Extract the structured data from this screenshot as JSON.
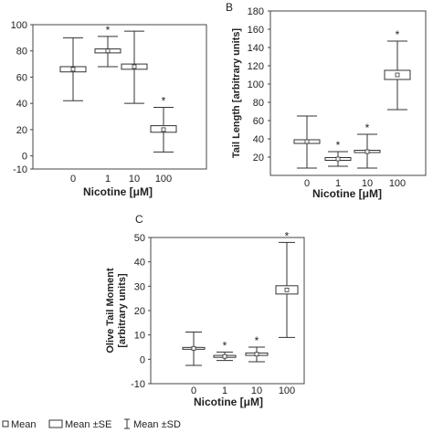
{
  "chart_data": [
    {
      "panel": "",
      "type": "box",
      "xlabel": "Nicotine [μM]",
      "ylabel": "",
      "ylim": [
        -10,
        100
      ],
      "yticks": [
        -10,
        0,
        20,
        40,
        60,
        80,
        100
      ],
      "categories": [
        "0",
        "1",
        "10",
        "100"
      ],
      "boxes": [
        {
          "mean": 66,
          "se_low": 64,
          "se_high": 68,
          "sd_low": 42,
          "sd_high": 90,
          "significant": false
        },
        {
          "mean": 80,
          "se_low": 78.5,
          "se_high": 81.5,
          "sd_low": 68,
          "sd_high": 91,
          "significant": true
        },
        {
          "mean": 68,
          "se_low": 66,
          "se_high": 70,
          "sd_low": 40,
          "sd_high": 95,
          "significant": false
        },
        {
          "mean": 20,
          "se_low": 18,
          "se_high": 23,
          "sd_low": 3,
          "sd_high": 37,
          "significant": true
        }
      ]
    },
    {
      "panel": "B",
      "type": "box",
      "xlabel": "Nicotine [μM]",
      "ylabel": "Tail Length [arbitrary units]",
      "ylim": [
        0,
        180
      ],
      "yticks": [
        20,
        40,
        60,
        80,
        100,
        120,
        140,
        160,
        180
      ],
      "categories": [
        "0",
        "1",
        "10",
        "100"
      ],
      "boxes": [
        {
          "mean": 37,
          "se_low": 35,
          "se_high": 39,
          "sd_low": 8,
          "sd_high": 65,
          "significant": false
        },
        {
          "mean": 18,
          "se_low": 16.5,
          "se_high": 19.5,
          "sd_low": 10,
          "sd_high": 26,
          "significant": true
        },
        {
          "mean": 26,
          "se_low": 25,
          "se_high": 27.5,
          "sd_low": 8,
          "sd_high": 45,
          "significant": true
        },
        {
          "mean": 110,
          "se_low": 105,
          "se_high": 115,
          "sd_low": 72,
          "sd_high": 147,
          "significant": true
        }
      ]
    },
    {
      "panel": "C",
      "type": "box",
      "xlabel": "Nicotine [μM]",
      "ylabel": "Olive Tail Moment [arbitrary units]",
      "ylim": [
        -10,
        50
      ],
      "yticks": [
        -10,
        0,
        10,
        20,
        30,
        40,
        50
      ],
      "categories": [
        "0",
        "1",
        "10",
        "100"
      ],
      "boxes": [
        {
          "mean": 4.5,
          "se_low": 4.2,
          "se_high": 4.8,
          "sd_low": -2.5,
          "sd_high": 11.2,
          "significant": false
        },
        {
          "mean": 1.2,
          "se_low": 0.8,
          "se_high": 1.6,
          "sd_low": -0.5,
          "sd_high": 3,
          "significant": true
        },
        {
          "mean": 2.1,
          "se_low": 1.6,
          "se_high": 2.6,
          "sd_low": -1,
          "sd_high": 5,
          "significant": true
        },
        {
          "mean": 28.5,
          "se_low": 26.8,
          "se_high": 30.2,
          "sd_low": 9,
          "sd_high": 48,
          "significant": true
        }
      ]
    }
  ],
  "legend": [
    {
      "symbol": "mean",
      "label": "Mean"
    },
    {
      "symbol": "se-box",
      "label": "Mean ±SE"
    },
    {
      "symbol": "sd-whisker",
      "label": "Mean ±SD"
    }
  ],
  "significance_marker": "*"
}
